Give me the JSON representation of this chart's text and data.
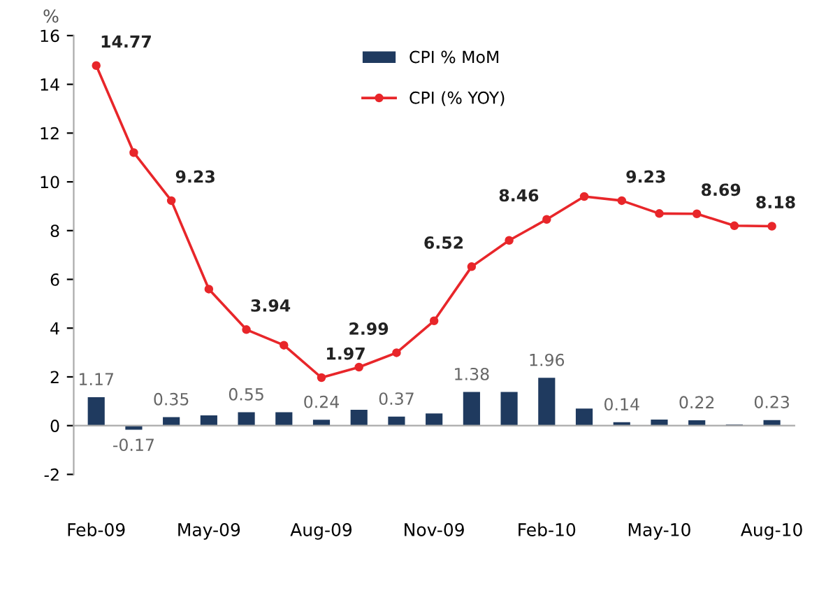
{
  "chart_data": {
    "type": "bar",
    "ylabel": "%",
    "categories": [
      "Feb-09",
      null,
      null,
      "May-09",
      null,
      null,
      "Aug-09",
      null,
      null,
      "Nov-09",
      null,
      null,
      "Feb-10",
      null,
      null,
      "May-10",
      null,
      null,
      "Aug-10"
    ],
    "series": [
      {
        "name": "CPI % MoM",
        "type": "bar",
        "color": "#1f3a5f",
        "values": [
          1.17,
          -0.17,
          0.35,
          0.42,
          0.55,
          0.55,
          0.24,
          0.65,
          0.37,
          0.5,
          1.38,
          1.38,
          1.96,
          0.7,
          0.14,
          0.25,
          0.22,
          0.05,
          0.23
        ],
        "value_labels": [
          "1.17",
          "-0.17",
          "0.35",
          null,
          "0.55",
          null,
          "0.24",
          null,
          "0.37",
          null,
          "1.38",
          null,
          "1.96",
          null,
          "0.14",
          null,
          "0.22",
          null,
          "0.23"
        ]
      },
      {
        "name": "CPI (% YOY)",
        "type": "line",
        "color": "#e8262a",
        "marker": "circle",
        "values": [
          14.77,
          11.2,
          9.23,
          5.6,
          3.94,
          3.3,
          1.97,
          2.4,
          2.99,
          4.3,
          6.52,
          7.6,
          8.46,
          9.4,
          9.23,
          8.7,
          8.69,
          8.2,
          8.18
        ],
        "value_labels": [
          "14.77",
          null,
          "9.23",
          null,
          "3.94",
          null,
          "1.97",
          null,
          "2.99",
          null,
          "6.52",
          null,
          "8.46",
          null,
          "9.23",
          null,
          "8.69",
          null,
          "8.18"
        ]
      }
    ],
    "ylim": [
      -2,
      16
    ],
    "yticks": [
      -2,
      0,
      2,
      4,
      6,
      8,
      10,
      12,
      14,
      16
    ],
    "legend": "top"
  }
}
